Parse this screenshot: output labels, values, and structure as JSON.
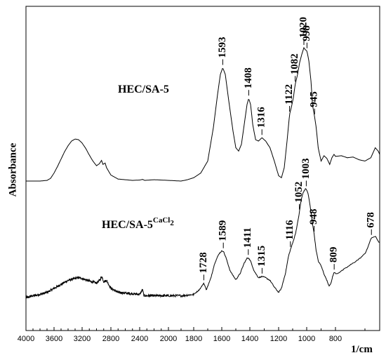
{
  "chart_data": {
    "type": "line",
    "xlabel": "1/cm",
    "ylabel": "Absorbance",
    "xlim": [
      4000,
      650
    ],
    "x_reversed": true,
    "x_ticks": [
      4000,
      3600,
      3200,
      2800,
      2400,
      2000,
      1800,
      1600,
      1400,
      1200,
      1000,
      800
    ],
    "y_ticks_labeled": false,
    "grid": false,
    "series": [
      {
        "name": "HEC/SA-5",
        "name_superscript": "",
        "baseline_abs": 0.0,
        "points": [
          [
            4000,
            0.0
          ],
          [
            3800,
            0.0
          ],
          [
            3700,
            0.01
          ],
          [
            3650,
            0.04
          ],
          [
            3600,
            0.12
          ],
          [
            3550,
            0.22
          ],
          [
            3500,
            0.33
          ],
          [
            3450,
            0.44
          ],
          [
            3400,
            0.53
          ],
          [
            3350,
            0.6
          ],
          [
            3300,
            0.63
          ],
          [
            3250,
            0.62
          ],
          [
            3200,
            0.57
          ],
          [
            3150,
            0.49
          ],
          [
            3100,
            0.39
          ],
          [
            3050,
            0.3
          ],
          [
            3000,
            0.23
          ],
          [
            2960,
            0.26
          ],
          [
            2930,
            0.31
          ],
          [
            2910,
            0.25
          ],
          [
            2880,
            0.27
          ],
          [
            2860,
            0.2
          ],
          [
            2800,
            0.09
          ],
          [
            2700,
            0.03
          ],
          [
            2500,
            0.01
          ],
          [
            2400,
            0.015
          ],
          [
            2360,
            0.025
          ],
          [
            2330,
            0.01
          ],
          [
            2200,
            0.02
          ],
          [
            2000,
            0.01
          ],
          [
            1900,
            0.0
          ],
          [
            1850,
            0.02
          ],
          [
            1800,
            0.05
          ],
          [
            1750,
            0.12
          ],
          [
            1700,
            0.3
          ],
          [
            1660,
            0.8
          ],
          [
            1630,
            1.3
          ],
          [
            1610,
            1.6
          ],
          [
            1593,
            1.7
          ],
          [
            1575,
            1.6
          ],
          [
            1550,
            1.2
          ],
          [
            1520,
            0.75
          ],
          [
            1500,
            0.5
          ],
          [
            1480,
            0.45
          ],
          [
            1460,
            0.55
          ],
          [
            1440,
            0.85
          ],
          [
            1420,
            1.15
          ],
          [
            1408,
            1.24
          ],
          [
            1395,
            1.15
          ],
          [
            1380,
            0.85
          ],
          [
            1360,
            0.62
          ],
          [
            1340,
            0.6
          ],
          [
            1316,
            0.65
          ],
          [
            1290,
            0.6
          ],
          [
            1260,
            0.5
          ],
          [
            1230,
            0.3
          ],
          [
            1200,
            0.08
          ],
          [
            1180,
            0.05
          ],
          [
            1160,
            0.2
          ],
          [
            1140,
            0.6
          ],
          [
            1122,
            1.0
          ],
          [
            1110,
            1.1
          ],
          [
            1095,
            1.25
          ],
          [
            1082,
            1.45
          ],
          [
            1065,
            1.6
          ],
          [
            1050,
            1.78
          ],
          [
            1035,
            1.9
          ],
          [
            1020,
            2.0
          ],
          [
            1010,
            1.97
          ],
          [
            998,
            1.95
          ],
          [
            985,
            1.8
          ],
          [
            970,
            1.5
          ],
          [
            960,
            1.15
          ],
          [
            945,
            0.96
          ],
          [
            935,
            0.82
          ],
          [
            920,
            0.5
          ],
          [
            900,
            0.3
          ],
          [
            880,
            0.38
          ],
          [
            860,
            0.34
          ],
          [
            840,
            0.25
          ],
          [
            825,
            0.35
          ],
          [
            810,
            0.4
          ],
          [
            800,
            0.37
          ],
          [
            780,
            0.38
          ],
          [
            760,
            0.35
          ],
          [
            740,
            0.36
          ],
          [
            720,
            0.32
          ],
          [
            700,
            0.3
          ],
          [
            680,
            0.35
          ],
          [
            665,
            0.5
          ],
          [
            655,
            0.45
          ],
          [
            650,
            0.4
          ]
        ],
        "noise": 0.0
      },
      {
        "name": "HEC/SA-5",
        "name_superscript": "CaCl",
        "name_subscript": "2",
        "baseline_abs": -1.75,
        "points": [
          [
            4000,
            0.0
          ],
          [
            3900,
            0.03
          ],
          [
            3800,
            0.05
          ],
          [
            3700,
            0.08
          ],
          [
            3600,
            0.14
          ],
          [
            3500,
            0.2
          ],
          [
            3400,
            0.26
          ],
          [
            3300,
            0.29
          ],
          [
            3250,
            0.3
          ],
          [
            3200,
            0.29
          ],
          [
            3100,
            0.25
          ],
          [
            3000,
            0.22
          ],
          [
            2950,
            0.27
          ],
          [
            2925,
            0.32
          ],
          [
            2900,
            0.24
          ],
          [
            2860,
            0.26
          ],
          [
            2800,
            0.14
          ],
          [
            2700,
            0.08
          ],
          [
            2500,
            0.06
          ],
          [
            2400,
            0.05
          ],
          [
            2360,
            0.12
          ],
          [
            2340,
            0.03
          ],
          [
            2200,
            0.03
          ],
          [
            2000,
            0.03
          ],
          [
            1900,
            0.03
          ],
          [
            1800,
            0.05
          ],
          [
            1760,
            0.12
          ],
          [
            1740,
            0.18
          ],
          [
            1728,
            0.22
          ],
          [
            1710,
            0.12
          ],
          [
            1680,
            0.28
          ],
          [
            1650,
            0.52
          ],
          [
            1620,
            0.66
          ],
          [
            1600,
            0.7
          ],
          [
            1589,
            0.7
          ],
          [
            1570,
            0.6
          ],
          [
            1540,
            0.4
          ],
          [
            1500,
            0.27
          ],
          [
            1470,
            0.36
          ],
          [
            1440,
            0.52
          ],
          [
            1420,
            0.59
          ],
          [
            1411,
            0.6
          ],
          [
            1395,
            0.55
          ],
          [
            1370,
            0.4
          ],
          [
            1340,
            0.3
          ],
          [
            1315,
            0.32
          ],
          [
            1290,
            0.3
          ],
          [
            1260,
            0.26
          ],
          [
            1230,
            0.16
          ],
          [
            1200,
            0.08
          ],
          [
            1180,
            0.14
          ],
          [
            1150,
            0.38
          ],
          [
            1130,
            0.62
          ],
          [
            1116,
            0.72
          ],
          [
            1100,
            0.82
          ],
          [
            1080,
            0.96
          ],
          [
            1065,
            1.12
          ],
          [
            1052,
            1.28
          ],
          [
            1040,
            1.46
          ],
          [
            1025,
            1.58
          ],
          [
            1010,
            1.63
          ],
          [
            1003,
            1.63
          ],
          [
            990,
            1.56
          ],
          [
            975,
            1.36
          ],
          [
            960,
            1.12
          ],
          [
            948,
            0.95
          ],
          [
            935,
            0.72
          ],
          [
            920,
            0.55
          ],
          [
            900,
            0.48
          ],
          [
            880,
            0.36
          ],
          [
            860,
            0.26
          ],
          [
            845,
            0.18
          ],
          [
            830,
            0.22
          ],
          [
            820,
            0.32
          ],
          [
            809,
            0.38
          ],
          [
            795,
            0.36
          ],
          [
            780,
            0.4
          ],
          [
            760,
            0.46
          ],
          [
            740,
            0.52
          ],
          [
            720,
            0.58
          ],
          [
            700,
            0.66
          ],
          [
            690,
            0.76
          ],
          [
            678,
            0.9
          ],
          [
            665,
            0.92
          ],
          [
            655,
            0.85
          ],
          [
            650,
            0.82
          ]
        ],
        "noise": 0.018
      }
    ],
    "annotations": [
      {
        "text": "1593",
        "x": 1593,
        "series": 0
      },
      {
        "text": "1408",
        "x": 1408,
        "series": 0
      },
      {
        "text": "1316",
        "x": 1316,
        "series": 0
      },
      {
        "text": "1122",
        "x": 1122,
        "series": 0
      },
      {
        "text": "1082",
        "x": 1082,
        "series": 0
      },
      {
        "text": "1020",
        "x": 1020,
        "series": 0
      },
      {
        "text": "998",
        "x": 998,
        "series": 0
      },
      {
        "text": "945",
        "x": 945,
        "series": 0
      },
      {
        "text": "1728",
        "x": 1728,
        "series": 1
      },
      {
        "text": "1589",
        "x": 1589,
        "series": 1
      },
      {
        "text": "1411",
        "x": 1411,
        "series": 1
      },
      {
        "text": "1315",
        "x": 1315,
        "series": 1
      },
      {
        "text": "1116",
        "x": 1116,
        "series": 1
      },
      {
        "text": "1052",
        "x": 1052,
        "series": 1
      },
      {
        "text": "1003",
        "x": 1003,
        "series": 1
      },
      {
        "text": "948",
        "x": 948,
        "series": 1
      },
      {
        "text": "809",
        "x": 809,
        "series": 1
      },
      {
        "text": "678",
        "x": 678,
        "series": 1
      }
    ]
  }
}
